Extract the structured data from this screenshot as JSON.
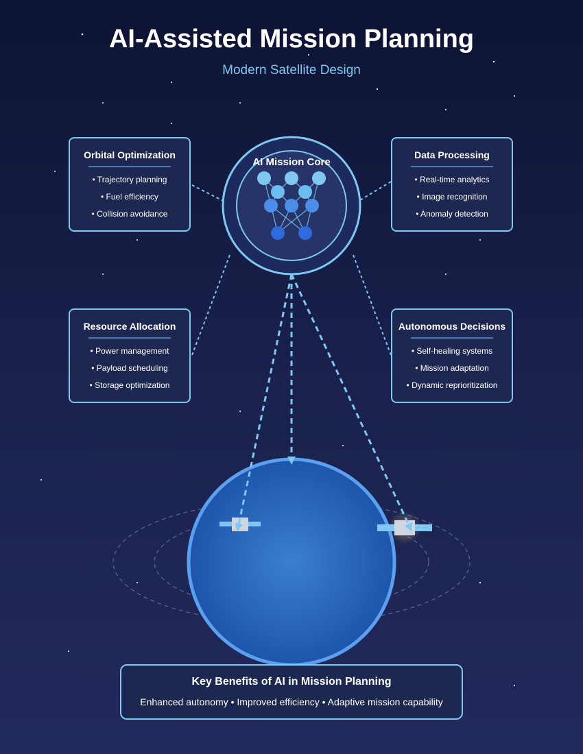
{
  "header": {
    "title": "AI-Assisted Mission Planning",
    "subtitle": "Modern Satellite Design"
  },
  "core": {
    "label": "AI Mission Core"
  },
  "cards": [
    {
      "id": "orbital",
      "title": "Orbital Optimization",
      "items": [
        "• Trajectory planning",
        "• Fuel efficiency",
        "• Collision avoidance"
      ]
    },
    {
      "id": "data",
      "title": "Data Processing",
      "items": [
        "• Real-time analytics",
        "• Image recognition",
        "• Anomaly detection"
      ]
    },
    {
      "id": "resource",
      "title": "Resource Allocation",
      "items": [
        "• Power management",
        "• Payload scheduling",
        "• Storage optimization"
      ]
    },
    {
      "id": "autonomous",
      "title": "Autonomous Decisions",
      "items": [
        "• Self-healing systems",
        "• Mission adaptation",
        "• Dynamic reprioritization"
      ]
    }
  ],
  "benefits": {
    "title": "Key Benefits of AI in Mission Planning",
    "text": "Enhanced autonomy • Improved efficiency • Adaptive mission capability"
  },
  "colors": {
    "accent": "#7ec8f2",
    "planet": "#2160b8",
    "planet_rim": "#5a9ff0",
    "node_light": "#7ec8f2",
    "node_mid": "#4a8ee8",
    "node_dark": "#2f6bdc"
  }
}
